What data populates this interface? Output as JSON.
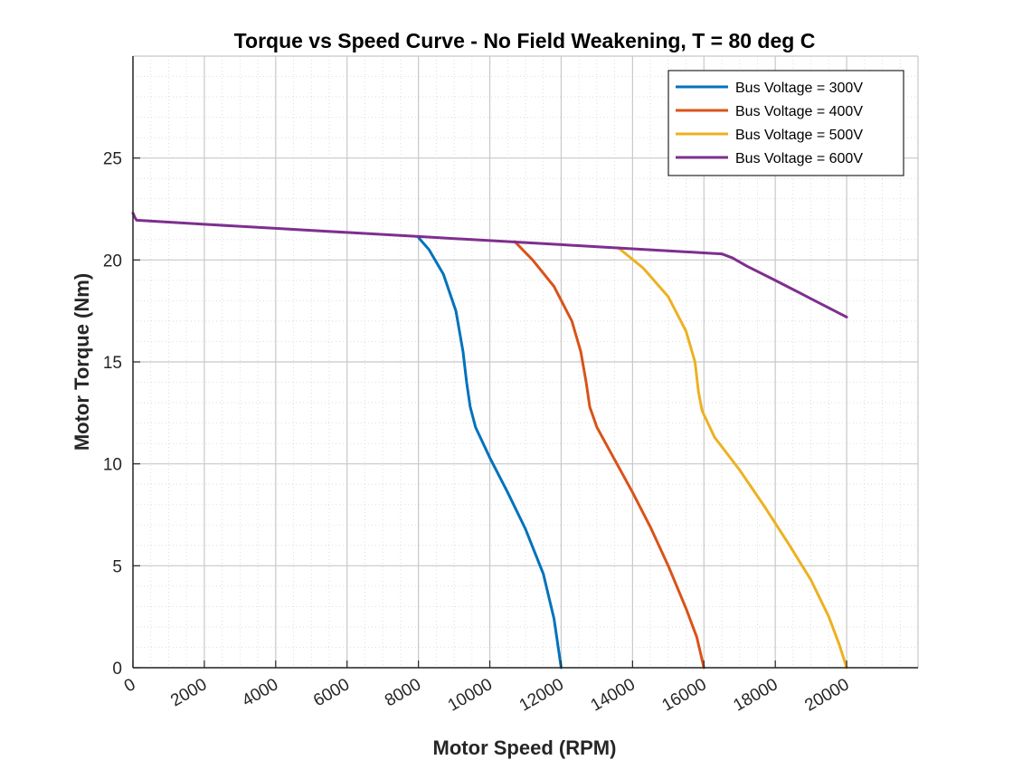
{
  "chart_data": {
    "type": "line",
    "title": "Torque vs Speed Curve - No Field Weakening, T = 80 deg C",
    "xlabel": "Motor Speed (RPM)",
    "ylabel": "Motor Torque (Nm)",
    "xlim": [
      0,
      22000
    ],
    "ylim": [
      0,
      30
    ],
    "xticks": [
      0,
      2000,
      4000,
      6000,
      8000,
      10000,
      12000,
      14000,
      16000,
      18000,
      20000
    ],
    "yticks": [
      0,
      5,
      10,
      15,
      20,
      25
    ],
    "grid": true,
    "minor_grid": true,
    "legend_position": "top-right",
    "series": [
      {
        "name": "Bus Voltage = 300V",
        "color": "#0072BD",
        "x": [
          8000,
          8300,
          8700,
          9050,
          9250,
          9350,
          9450,
          9600,
          10000,
          10500,
          11000,
          11500,
          11800,
          12000
        ],
        "y": [
          21.1,
          20.5,
          19.3,
          17.5,
          15.5,
          14.0,
          12.8,
          11.8,
          10.3,
          8.6,
          6.8,
          4.6,
          2.4,
          0
        ]
      },
      {
        "name": "Bus Voltage = 400V",
        "color": "#D95319",
        "x": [
          10700,
          11200,
          11800,
          12300,
          12550,
          12700,
          12800,
          13000,
          13500,
          14000,
          14500,
          15000,
          15500,
          15800,
          16000
        ],
        "y": [
          20.9,
          20.0,
          18.7,
          17.0,
          15.5,
          14.0,
          12.8,
          11.8,
          10.2,
          8.6,
          6.9,
          5.0,
          2.9,
          1.5,
          0
        ]
      },
      {
        "name": "Bus Voltage = 500V",
        "color": "#EDB120",
        "x": [
          13600,
          14300,
          15000,
          15500,
          15750,
          15850,
          15950,
          16300,
          17000,
          17700,
          18400,
          19000,
          19500,
          19800,
          20000
        ],
        "y": [
          20.6,
          19.6,
          18.2,
          16.5,
          15.0,
          13.5,
          12.6,
          11.3,
          9.7,
          7.9,
          6.0,
          4.3,
          2.5,
          1.1,
          0
        ]
      },
      {
        "name": "Bus Voltage = 600V",
        "color": "#7E2F8E",
        "x": [
          0,
          50,
          100,
          2000,
          4000,
          6000,
          8000,
          10000,
          12000,
          14000,
          16000,
          16500,
          16800,
          17200,
          18000,
          19000,
          20000
        ],
        "y": [
          22.3,
          22.1,
          21.95,
          21.75,
          21.55,
          21.35,
          21.15,
          20.95,
          20.75,
          20.55,
          20.35,
          20.3,
          20.1,
          19.7,
          19.0,
          18.1,
          17.2
        ]
      }
    ]
  }
}
